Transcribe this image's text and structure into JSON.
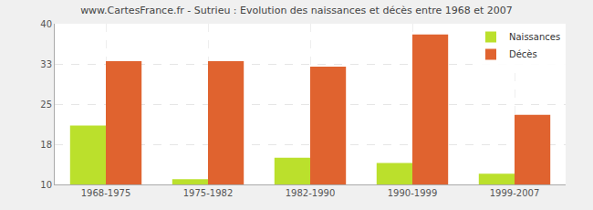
{
  "chart_data": {
    "type": "bar",
    "title": "www.CartesFrance.fr - Sutrieu : Evolution des naissances et décès entre 1968 et 2007",
    "categories": [
      "1968-1975",
      "1975-1982",
      "1982-1990",
      "1990-1999",
      "1999-2007"
    ],
    "series": [
      {
        "name": "Naissances",
        "color": "#bbe02c",
        "values": [
          21,
          11,
          15,
          14,
          12
        ]
      },
      {
        "name": "Décès",
        "color": "#e0632f",
        "values": [
          33,
          33,
          32,
          38,
          23
        ]
      }
    ],
    "ylim": [
      10,
      40
    ],
    "yticks": [
      10,
      {
        "value": 17.5,
        "label": "18"
      },
      25,
      {
        "value": 32.5,
        "label": "33"
      },
      40
    ],
    "grid": true,
    "legend": "upper right"
  }
}
